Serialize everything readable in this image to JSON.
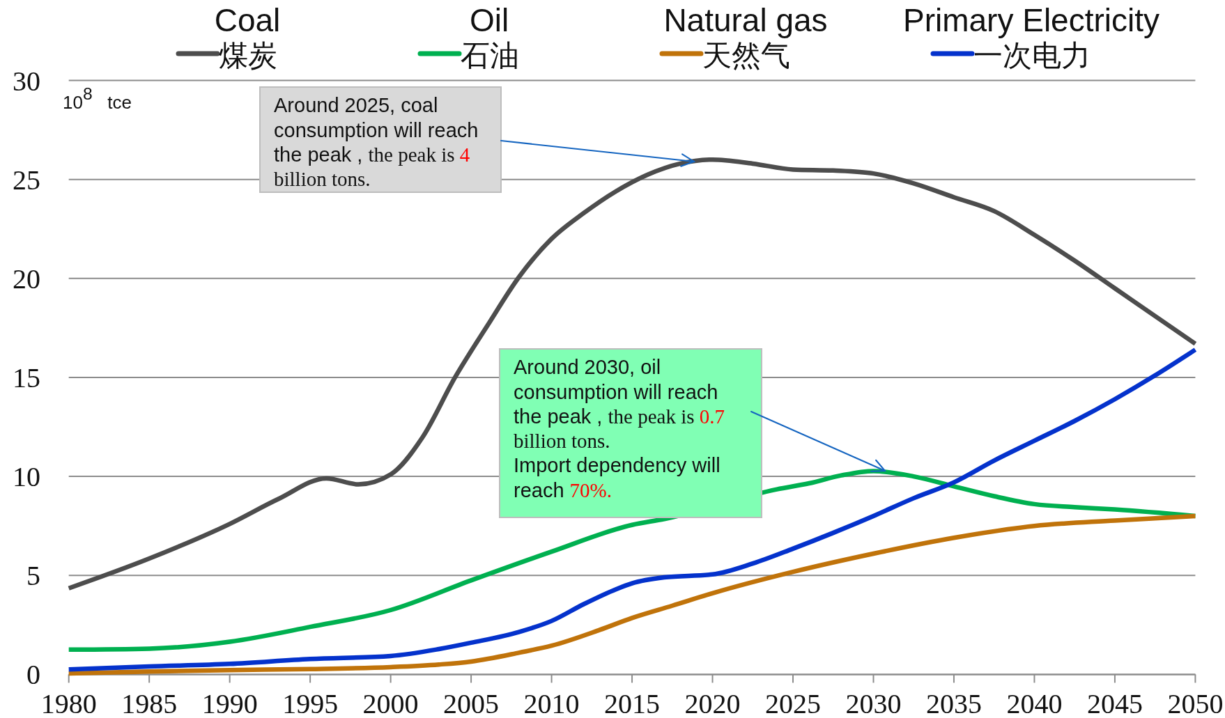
{
  "chart_data": {
    "type": "line",
    "ylabel": "10$^{8}$ tce",
    "xlim": [
      1980,
      2050
    ],
    "xticks": [
      1980,
      1985,
      1990,
      1995,
      2000,
      2005,
      2010,
      2015,
      2020,
      2025,
      2030,
      2035,
      2040,
      2045,
      2050
    ],
    "ylim": [
      0,
      30
    ],
    "yticks": [
      0,
      5,
      10,
      15,
      20,
      25,
      30
    ],
    "grid": "y",
    "legend": "top",
    "annotations": [
      "Around 2025, coal consumption will reach the peak , the peak is 4 billion tons.",
      "Around 2030, oil consumption will reach the peak , the peak is 0.7 billion tons.\nImport dependency will reach 70%.",
      "Coal",
      "Oil",
      "Natural gas",
      "Primary Electricity"
    ],
    "series": [
      {
        "name": "煤炭",
        "color": "#4d4d4d",
        "x": [
          1980,
          1985,
          1990,
          1993,
          1996,
          1998,
          2000,
          2002,
          2004,
          2006,
          2008,
          2010,
          2012,
          2014,
          2016,
          2018,
          2020,
          2022.5,
          2025,
          2027.5,
          2030,
          2032.5,
          2035,
          2037.5,
          2040,
          2042.5,
          2045,
          2047.5,
          2050
        ],
        "values": [
          4.35,
          5.85,
          7.6,
          8.85,
          9.9,
          9.6,
          10.1,
          12.0,
          15.0,
          17.6,
          20.1,
          22.0,
          23.3,
          24.4,
          25.25,
          25.8,
          26.0,
          25.8,
          25.5,
          25.45,
          25.3,
          24.8,
          24.1,
          23.4,
          22.2,
          20.9,
          19.5,
          18.1,
          16.7
        ]
      },
      {
        "name": "石油",
        "color": "#00b050",
        "x": [
          1980,
          1985,
          1990,
          1995,
          2000,
          2005,
          2010,
          2015,
          2017,
          2024,
          2026,
          2028,
          2030,
          2032.5,
          2035,
          2037.5,
          2040,
          2042.5,
          2045,
          2050
        ],
        "values": [
          1.25,
          1.3,
          1.65,
          2.4,
          3.25,
          4.75,
          6.2,
          7.55,
          7.85,
          9.35,
          9.65,
          10.05,
          10.27,
          10.0,
          9.5,
          9.0,
          8.6,
          8.45,
          8.33,
          8.0
        ]
      },
      {
        "name": "天然气",
        "color": "#c0730a",
        "x": [
          1980,
          1985,
          1990,
          1995,
          2000,
          2003,
          2005,
          2008,
          2010,
          2013,
          2015,
          2017.5,
          2020,
          2025,
          2030,
          2035,
          2040,
          2045,
          2050
        ],
        "values": [
          0.05,
          0.15,
          0.22,
          0.27,
          0.37,
          0.5,
          0.65,
          1.1,
          1.45,
          2.25,
          2.85,
          3.47,
          4.1,
          5.18,
          6.1,
          6.9,
          7.5,
          7.77,
          8.0
        ]
      },
      {
        "name": "一次电力",
        "color": "#0432cc",
        "x": [
          1980,
          1985,
          1990,
          1995,
          2000,
          2003,
          2005,
          2008,
          2010,
          2012,
          2014,
          2015,
          2017,
          2020,
          2022.5,
          2025,
          2027.5,
          2030,
          2032.5,
          2035,
          2037.5,
          2040,
          2042.5,
          2045,
          2047.5,
          2050
        ],
        "values": [
          0.25,
          0.4,
          0.53,
          0.78,
          0.93,
          1.28,
          1.6,
          2.15,
          2.7,
          3.55,
          4.3,
          4.6,
          4.9,
          5.05,
          5.6,
          6.35,
          7.15,
          8.0,
          8.9,
          9.7,
          10.8,
          11.8,
          12.8,
          13.9,
          15.1,
          16.4
        ]
      }
    ]
  }
}
